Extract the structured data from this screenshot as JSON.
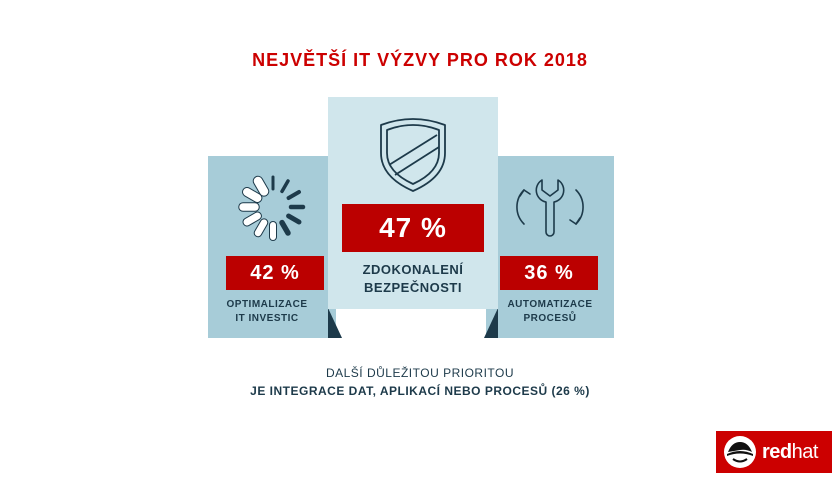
{
  "title": "NEJVĚTŠÍ IT VÝZVY PRO ROK 2018",
  "chart_data": {
    "type": "bar",
    "title": "NEJVĚTŠÍ IT VÝZVY PRO ROK 2018",
    "categories": [
      "OPTIMALIZACE IT INVESTIC",
      "ZDOKONALENÍ BEZPEČNOSTI",
      "AUTOMATIZACE PROCESŮ"
    ],
    "values": [
      42,
      47,
      36
    ],
    "value_labels": [
      "42 %",
      "47 %",
      "36 %"
    ],
    "unit": "%"
  },
  "panels": {
    "left": {
      "value": "42 %",
      "label_line1": "OPTIMALIZACE",
      "label_line2": "IT INVESTIC",
      "icon": "loading-spinner-icon"
    },
    "center": {
      "value": "47 %",
      "label_line1": "ZDOKONALENÍ",
      "label_line2": "BEZPEČNOSTI",
      "icon": "shield-icon"
    },
    "right": {
      "value": "36 %",
      "label_line1": "AUTOMATIZACE",
      "label_line2": "PROCESŮ",
      "icon": "wrench-cycle-icon"
    }
  },
  "footer": {
    "line1": "DALŠÍ DŮLEŽITOU PRIORITOU",
    "line2": "JE INTEGRACE DAT, APLIKACÍ NEBO PROCESŮ (26 %)"
  },
  "logo": {
    "text_bold": "red",
    "text_regular": "hat"
  },
  "colors": {
    "accent": "#cc0000",
    "badge": "#bb0000",
    "panel_side": "#a7ccd8",
    "panel_center": "#d0e6ec",
    "text_dark": "#1d3a4a"
  }
}
